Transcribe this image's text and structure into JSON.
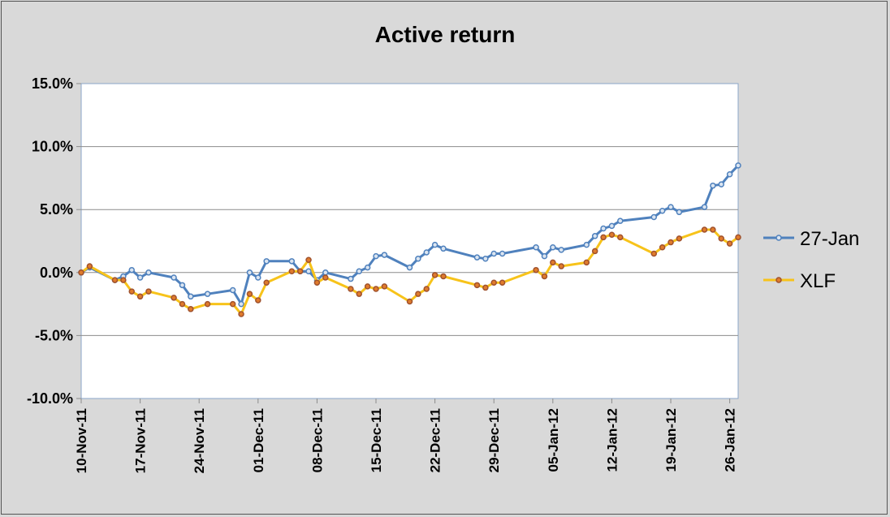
{
  "chart_data": {
    "type": "line",
    "title": "Active return",
    "xlabel": "",
    "ylabel": "",
    "ylim": [
      -0.1,
      0.15
    ],
    "yticks": [
      -0.1,
      -0.05,
      0.0,
      0.05,
      0.1,
      0.15
    ],
    "ytick_labels": [
      "-10.0%",
      "-5.0%",
      "0.0%",
      "5.0%",
      "10.0%",
      "15.0%"
    ],
    "xlim": [
      "2011-11-10",
      "2012-01-27"
    ],
    "xtick_labels": [
      "10-Nov-11",
      "17-Nov-11",
      "24-Nov-11",
      "01-Dec-11",
      "08-Dec-11",
      "15-Dec-11",
      "22-Dec-11",
      "29-Dec-11",
      "05-Jan-12",
      "12-Jan-12",
      "19-Jan-12",
      "26-Jan-12"
    ],
    "xtick_dates": [
      "2011-11-10",
      "2011-11-17",
      "2011-11-24",
      "2011-12-01",
      "2011-12-08",
      "2011-12-15",
      "2011-12-22",
      "2011-12-29",
      "2012-01-05",
      "2012-01-12",
      "2012-01-19",
      "2012-01-26"
    ],
    "grid": true,
    "legend_position": "right",
    "series": [
      {
        "name": "27-Jan",
        "color": "#4f81bd",
        "marker_fill": "#dbe5f1",
        "points": [
          [
            "2011-11-10",
            0.0
          ],
          [
            "2011-11-11",
            0.004
          ],
          [
            "2011-11-14",
            -0.006
          ],
          [
            "2011-11-15",
            -0.003
          ],
          [
            "2011-11-16",
            0.002
          ],
          [
            "2011-11-17",
            -0.004
          ],
          [
            "2011-11-18",
            0.0
          ],
          [
            "2011-11-21",
            -0.004
          ],
          [
            "2011-11-22",
            -0.01
          ],
          [
            "2011-11-23",
            -0.019
          ],
          [
            "2011-11-25",
            -0.017
          ],
          [
            "2011-11-28",
            -0.014
          ],
          [
            "2011-11-29",
            -0.025
          ],
          [
            "2011-11-30",
            0.0
          ],
          [
            "2011-12-01",
            -0.004
          ],
          [
            "2011-12-02",
            0.009
          ],
          [
            "2011-12-05",
            0.009
          ],
          [
            "2011-12-06",
            0.001
          ],
          [
            "2011-12-07",
            0.001
          ],
          [
            "2011-12-08",
            -0.006
          ],
          [
            "2011-12-09",
            0.0
          ],
          [
            "2011-12-12",
            -0.005
          ],
          [
            "2011-12-13",
            0.001
          ],
          [
            "2011-12-14",
            0.004
          ],
          [
            "2011-12-15",
            0.013
          ],
          [
            "2011-12-16",
            0.014
          ],
          [
            "2011-12-19",
            0.004
          ],
          [
            "2011-12-20",
            0.011
          ],
          [
            "2011-12-21",
            0.016
          ],
          [
            "2011-12-22",
            0.022
          ],
          [
            "2011-12-23",
            0.019
          ],
          [
            "2011-12-27",
            0.012
          ],
          [
            "2011-12-28",
            0.011
          ],
          [
            "2011-12-29",
            0.015
          ],
          [
            "2011-12-30",
            0.015
          ],
          [
            "2012-01-03",
            0.02
          ],
          [
            "2012-01-04",
            0.013
          ],
          [
            "2012-01-05",
            0.02
          ],
          [
            "2012-01-06",
            0.018
          ],
          [
            "2012-01-09",
            0.022
          ],
          [
            "2012-01-10",
            0.029
          ],
          [
            "2012-01-11",
            0.035
          ],
          [
            "2012-01-12",
            0.037
          ],
          [
            "2012-01-13",
            0.041
          ],
          [
            "2012-01-17",
            0.044
          ],
          [
            "2012-01-18",
            0.049
          ],
          [
            "2012-01-19",
            0.052
          ],
          [
            "2012-01-20",
            0.048
          ],
          [
            "2012-01-23",
            0.052
          ],
          [
            "2012-01-24",
            0.069
          ],
          [
            "2012-01-25",
            0.07
          ],
          [
            "2012-01-26",
            0.078
          ],
          [
            "2012-01-27",
            0.085
          ]
        ]
      },
      {
        "name": "XLF",
        "color": "#f7c31a",
        "marker_fill": "#e07b2c",
        "marker_stroke": "#a0522d",
        "points": [
          [
            "2011-11-10",
            0.0
          ],
          [
            "2011-11-11",
            0.005
          ],
          [
            "2011-11-14",
            -0.006
          ],
          [
            "2011-11-15",
            -0.006
          ],
          [
            "2011-11-16",
            -0.015
          ],
          [
            "2011-11-17",
            -0.019
          ],
          [
            "2011-11-18",
            -0.015
          ],
          [
            "2011-11-21",
            -0.02
          ],
          [
            "2011-11-22",
            -0.025
          ],
          [
            "2011-11-23",
            -0.029
          ],
          [
            "2011-11-25",
            -0.025
          ],
          [
            "2011-11-28",
            -0.025
          ],
          [
            "2011-11-29",
            -0.033
          ],
          [
            "2011-11-30",
            -0.017
          ],
          [
            "2011-12-01",
            -0.022
          ],
          [
            "2011-12-02",
            -0.008
          ],
          [
            "2011-12-05",
            0.001
          ],
          [
            "2011-12-06",
            0.001
          ],
          [
            "2011-12-07",
            0.01
          ],
          [
            "2011-12-08",
            -0.008
          ],
          [
            "2011-12-09",
            -0.004
          ],
          [
            "2011-12-12",
            -0.013
          ],
          [
            "2011-12-13",
            -0.017
          ],
          [
            "2011-12-14",
            -0.011
          ],
          [
            "2011-12-15",
            -0.013
          ],
          [
            "2011-12-16",
            -0.011
          ],
          [
            "2011-12-19",
            -0.023
          ],
          [
            "2011-12-20",
            -0.017
          ],
          [
            "2011-12-21",
            -0.013
          ],
          [
            "2011-12-22",
            -0.002
          ],
          [
            "2011-12-23",
            -0.003
          ],
          [
            "2011-12-27",
            -0.01
          ],
          [
            "2011-12-28",
            -0.012
          ],
          [
            "2011-12-29",
            -0.008
          ],
          [
            "2011-12-30",
            -0.008
          ],
          [
            "2012-01-03",
            0.002
          ],
          [
            "2012-01-04",
            -0.003
          ],
          [
            "2012-01-05",
            0.008
          ],
          [
            "2012-01-06",
            0.005
          ],
          [
            "2012-01-09",
            0.008
          ],
          [
            "2012-01-10",
            0.017
          ],
          [
            "2012-01-11",
            0.028
          ],
          [
            "2012-01-12",
            0.03
          ],
          [
            "2012-01-13",
            0.028
          ],
          [
            "2012-01-17",
            0.015
          ],
          [
            "2012-01-18",
            0.02
          ],
          [
            "2012-01-19",
            0.024
          ],
          [
            "2012-01-20",
            0.027
          ],
          [
            "2012-01-23",
            0.034
          ],
          [
            "2012-01-24",
            0.034
          ],
          [
            "2012-01-25",
            0.027
          ],
          [
            "2012-01-26",
            0.023
          ],
          [
            "2012-01-27",
            0.028
          ]
        ]
      }
    ]
  }
}
